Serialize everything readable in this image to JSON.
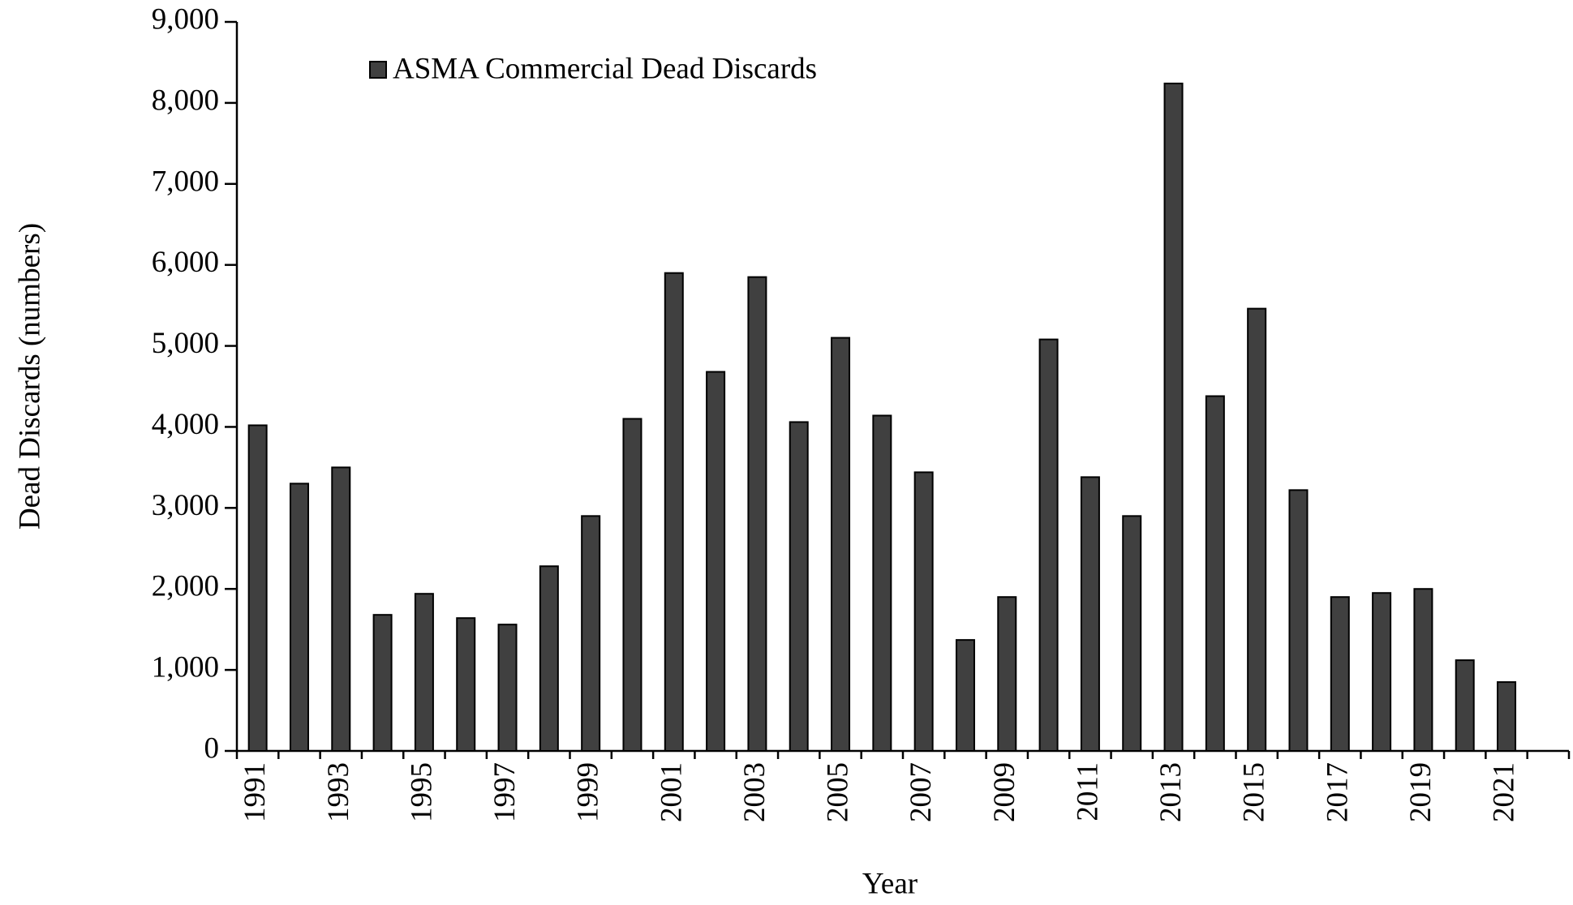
{
  "chart_data": {
    "type": "bar",
    "legend": "ASMA Commercial Dead Discards",
    "x_label": "Year",
    "y_label": "Dead Discards (numbers)",
    "categories": [
      "1991",
      null,
      "1993",
      null,
      "1995",
      null,
      "1997",
      null,
      "1999",
      null,
      "2001",
      null,
      "2003",
      null,
      "2005",
      null,
      "2007",
      null,
      "2009",
      null,
      "2011",
      null,
      "2013",
      null,
      "2015",
      null,
      "2017",
      null,
      "2019",
      null,
      "2021"
    ],
    "values": [
      4020,
      3300,
      3500,
      1680,
      1940,
      1640,
      1560,
      2280,
      2900,
      4100,
      5900,
      4680,
      5850,
      4060,
      5100,
      4140,
      3440,
      1370,
      1900,
      5080,
      3380,
      2900,
      8240,
      4380,
      5460,
      3220,
      1900,
      1950,
      2000,
      1120,
      850
    ],
    "color": "#404040",
    "ylim": [
      0,
      9000
    ],
    "yticks": [
      0,
      {
        "value": 1000,
        "label": "1,000"
      },
      {
        "value": 2000,
        "label": "2,000"
      },
      {
        "value": 3000,
        "label": "3,000"
      },
      {
        "value": 4000,
        "label": "4,000"
      },
      {
        "value": 5000,
        "label": "5,000"
      },
      {
        "value": 6000,
        "label": "6,000"
      },
      {
        "value": 7000,
        "label": "7,000"
      },
      {
        "value": 8000,
        "label": "8,000"
      },
      {
        "value": 9000,
        "label": "9,000"
      }
    ],
    "grid": false
  }
}
